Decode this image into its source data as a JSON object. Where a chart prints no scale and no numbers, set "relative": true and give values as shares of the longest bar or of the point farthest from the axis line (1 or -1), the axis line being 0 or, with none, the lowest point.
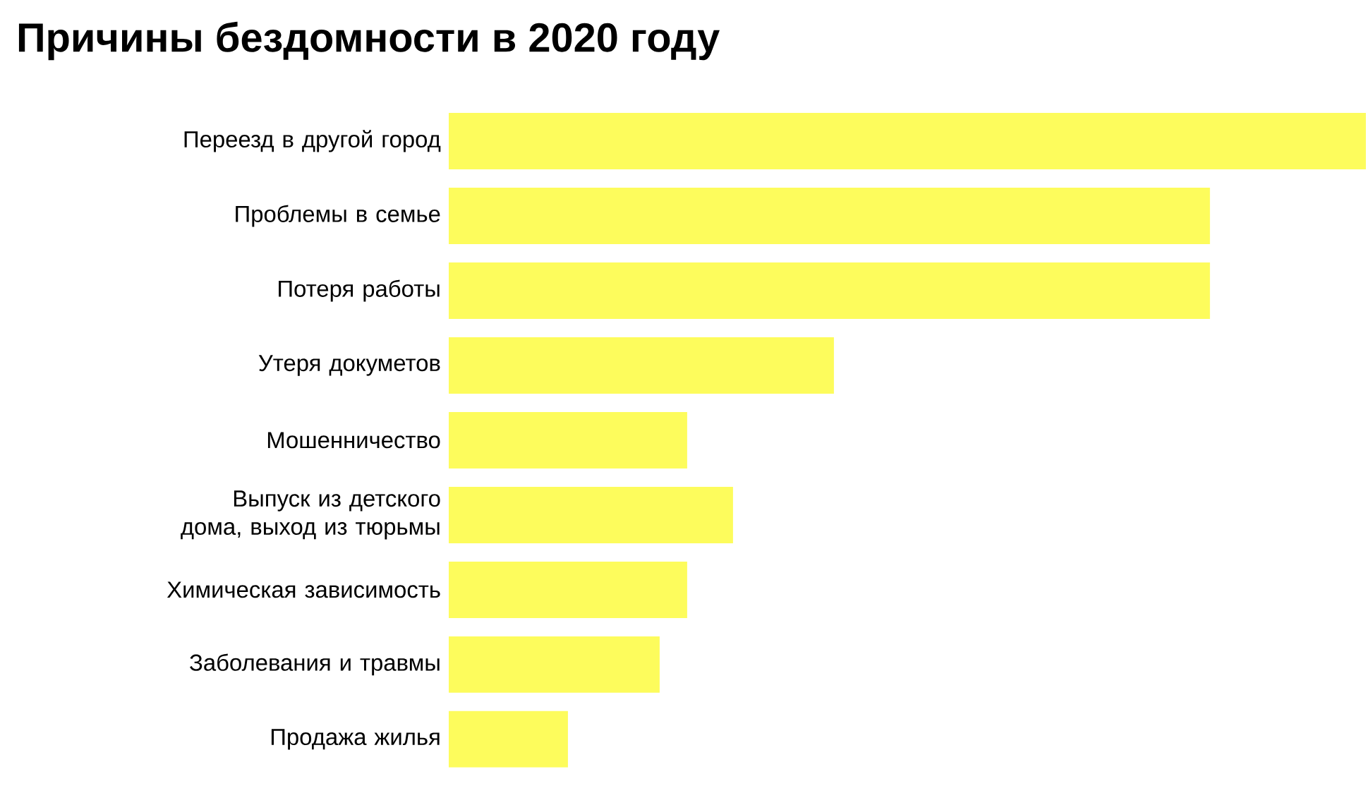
{
  "chart_data": {
    "type": "bar",
    "orientation": "horizontal",
    "relative": true,
    "title": "Причины бездомности в 2020 году",
    "categories": [
      "Переезд в другой город",
      "Проблемы в семье",
      "Потеря работы",
      "Утеря докуметов",
      "Мошенничество",
      "Выпуск из детского дома, выход из тюрьмы",
      "Химическая зависимость",
      "Заболевания и травмы",
      "Продажа жилья"
    ],
    "values": [
      1,
      0.83,
      0.83,
      0.42,
      0.26,
      0.31,
      0.26,
      0.23,
      0.13
    ],
    "color": "#fdfc5c"
  }
}
